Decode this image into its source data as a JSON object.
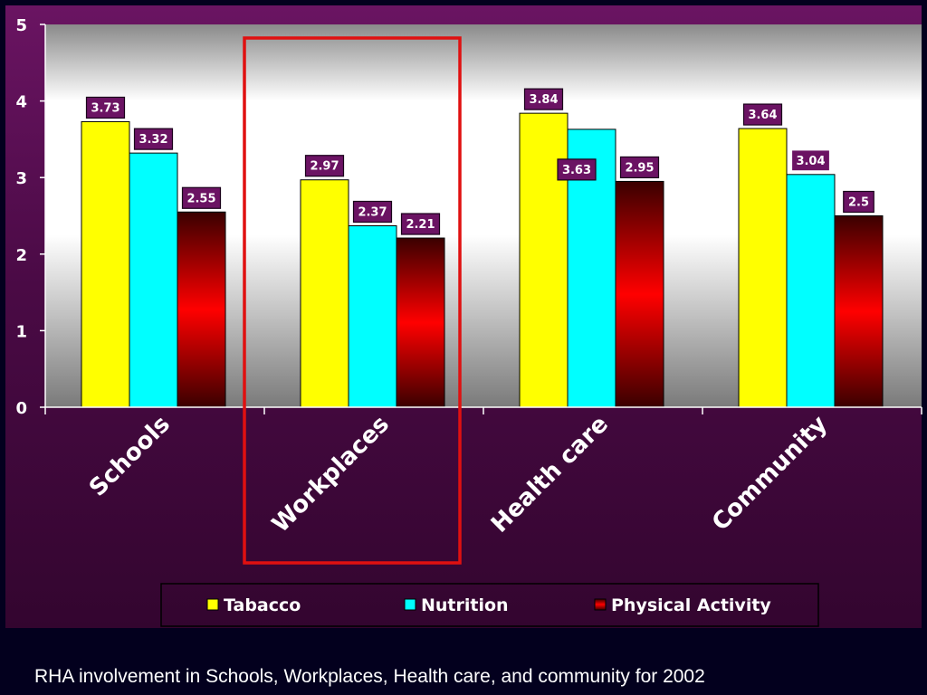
{
  "caption": "RHA involvement in Schools, Workplaces, Health care, and community for 2002",
  "colors": {
    "Tabacco": "#ffff00",
    "Nutrition": "#00ffff",
    "Physical Activity": "#c00000",
    "label_bg": "#6b1363",
    "highlight": "#e01010"
  },
  "chart_data": {
    "type": "bar",
    "title": "",
    "xlabel": "",
    "ylabel": "",
    "categories": [
      "Schools",
      "Workplaces",
      "Health care",
      "Community"
    ],
    "series": [
      {
        "name": "Tabacco",
        "values": [
          3.73,
          2.97,
          3.84,
          3.64
        ]
      },
      {
        "name": "Nutrition",
        "values": [
          3.32,
          2.37,
          3.63,
          3.04
        ]
      },
      {
        "name": "Physical Activity",
        "values": [
          2.55,
          2.21,
          2.95,
          2.5
        ]
      }
    ],
    "data_labels": [
      [
        "3.73",
        "3.32",
        "2.55"
      ],
      [
        "2.97",
        "2.37",
        "2.21"
      ],
      [
        "3.84",
        "3.63",
        "2.95"
      ],
      [
        "3.64",
        "3.04",
        "2.5"
      ]
    ],
    "ylim": [
      0,
      5
    ],
    "yticks": [
      "0",
      "1",
      "2",
      "3",
      "4",
      "5"
    ],
    "grid": false,
    "legend_position": "bottom",
    "highlighted_category": "Workplaces"
  }
}
